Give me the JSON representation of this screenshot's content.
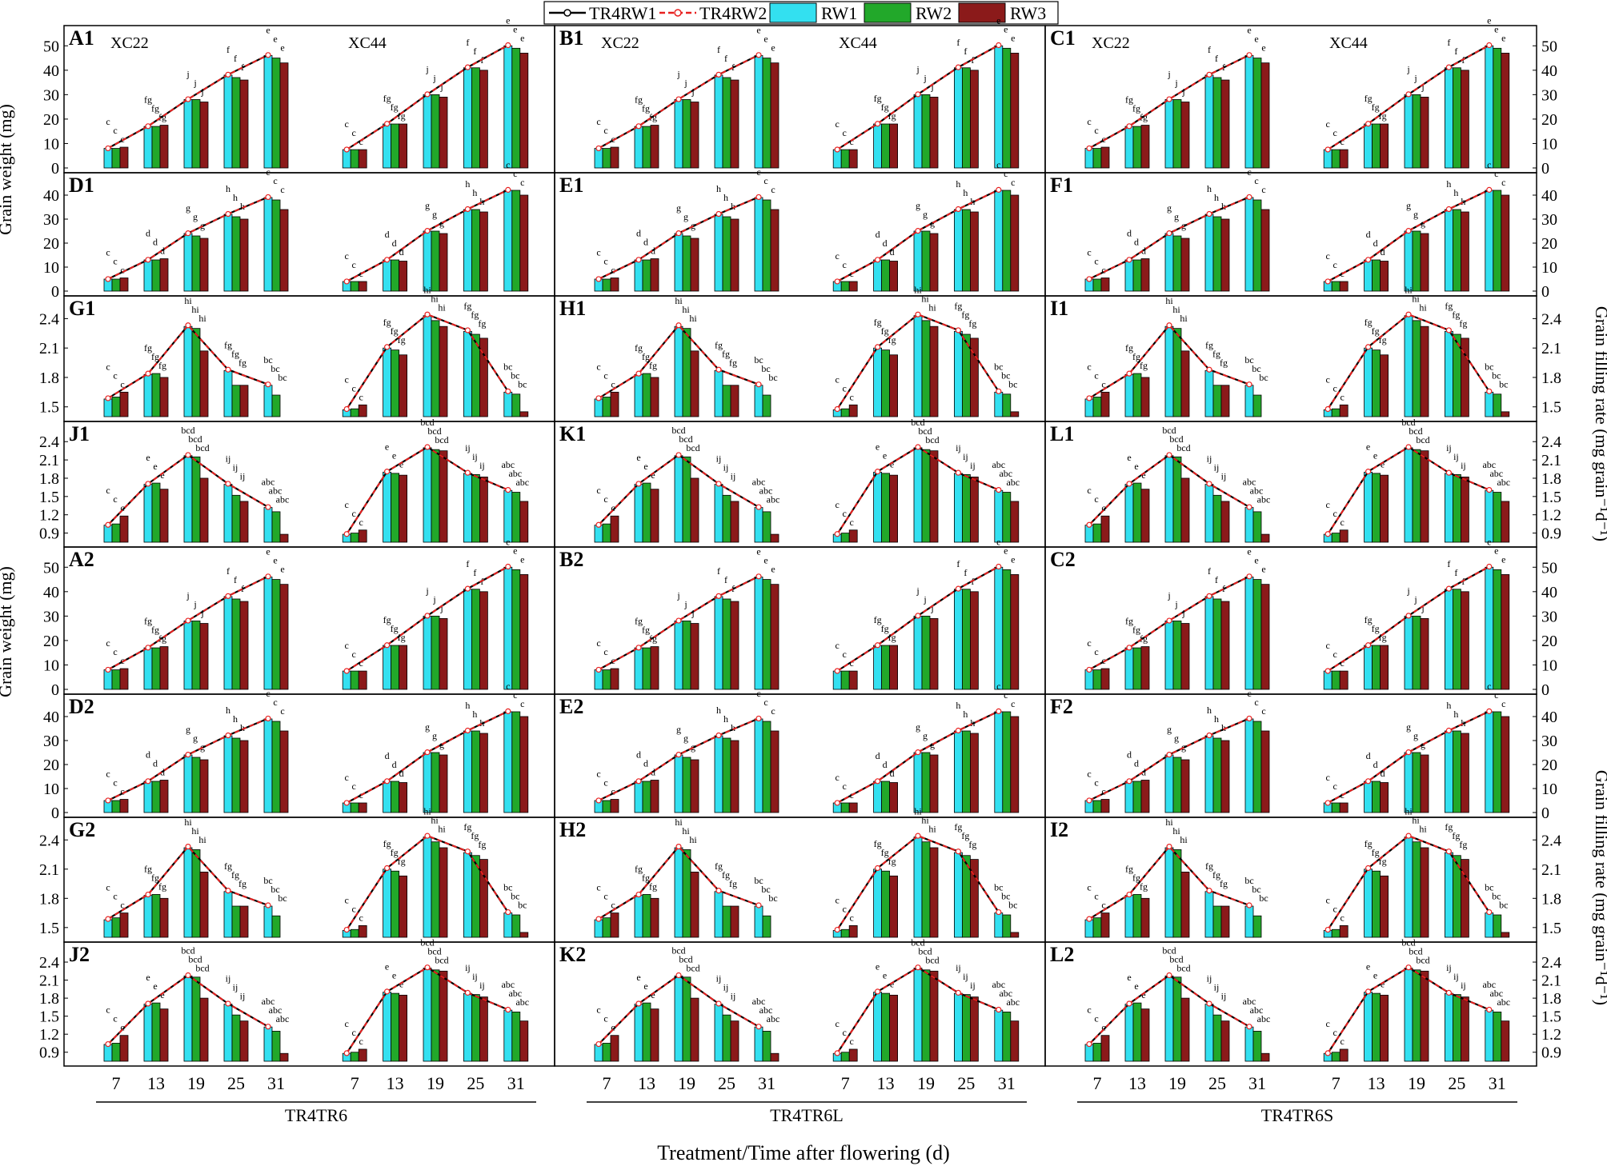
{
  "legend": {
    "entries": [
      {
        "label": "TR4RW1",
        "kind": "line",
        "color": "#000000"
      },
      {
        "label": "TR4RW2",
        "kind": "line-dashed",
        "color": "#e8201f"
      },
      {
        "label": "RW1",
        "kind": "bar",
        "color": "#33e0f0"
      },
      {
        "label": "RW2",
        "kind": "bar",
        "color": "#22a82a"
      },
      {
        "label": "RW3",
        "kind": "bar",
        "color": "#8b1a1a"
      }
    ]
  },
  "axes": {
    "left_label_weight": "Grain weight (mg)",
    "right_label_rate": "Grain filling rate (mg grain⁻¹d⁻¹)",
    "x_title": "Treatment/Time after flowering (d)",
    "x_ticks": [
      "7",
      "13",
      "19",
      "25",
      "31"
    ],
    "groups": [
      "TR4TR6",
      "TR4TR6L",
      "TR4TR6S"
    ],
    "cultivars": [
      "XC22",
      "XC44"
    ],
    "weight_ticks_big": [
      "0",
      "10",
      "20",
      "30",
      "40",
      "50"
    ],
    "weight_ticks_small": [
      "0",
      "10",
      "20",
      "30",
      "40"
    ],
    "rate_ticks_a": [
      "1.5",
      "1.8",
      "2.1",
      "2.4"
    ],
    "rate_ticks_b": [
      "0.9",
      "1.2",
      "1.5",
      "1.8",
      "2.1",
      "2.4"
    ]
  },
  "panel_rows": [
    {
      "row": 0,
      "labels": [
        "A1",
        "B1",
        "C1"
      ],
      "kind": "weight_big"
    },
    {
      "row": 1,
      "labels": [
        "D1",
        "E1",
        "F1"
      ],
      "kind": "weight_small"
    },
    {
      "row": 2,
      "labels": [
        "G1",
        "H1",
        "I1"
      ],
      "kind": "rate_a"
    },
    {
      "row": 3,
      "labels": [
        "J1",
        "K1",
        "L1"
      ],
      "kind": "rate_b"
    },
    {
      "row": 4,
      "labels": [
        "A2",
        "B2",
        "C2"
      ],
      "kind": "weight_big"
    },
    {
      "row": 5,
      "labels": [
        "D2",
        "E2",
        "F2"
      ],
      "kind": "weight_small"
    },
    {
      "row": 6,
      "labels": [
        "G2",
        "H2",
        "I2"
      ],
      "kind": "rate_a"
    },
    {
      "row": 7,
      "labels": [
        "J2",
        "K2",
        "L2"
      ],
      "kind": "rate_b"
    }
  ],
  "chart_data": {
    "type": "bar",
    "note_series": [
      "RW1",
      "RW2",
      "RW3"
    ],
    "x": [
      7,
      13,
      19,
      25,
      31
    ],
    "weight_big": {
      "XC22": {
        "RW1": [
          8,
          17,
          28,
          38,
          46
        ],
        "RW2": [
          8,
          17,
          28,
          37,
          45
        ],
        "RW3": [
          8.5,
          17.5,
          27,
          36,
          43
        ]
      },
      "XC44": {
        "RW1": [
          7.5,
          18,
          30,
          41,
          50
        ],
        "RW2": [
          7.5,
          18,
          30,
          41,
          49
        ],
        "RW3": [
          7.5,
          18,
          29,
          40,
          47
        ]
      },
      "ylim": [
        0,
        55
      ]
    },
    "weight_small": {
      "XC22": {
        "RW1": [
          5,
          13,
          24,
          32,
          39
        ],
        "RW2": [
          5,
          13,
          23,
          31,
          38
        ],
        "RW3": [
          5.5,
          13.5,
          22,
          30,
          34
        ]
      },
      "XC44": {
        "RW1": [
          4,
          13,
          25,
          34,
          42
        ],
        "RW2": [
          4,
          13,
          25,
          34,
          42
        ],
        "RW3": [
          4,
          12.5,
          24,
          33,
          40
        ]
      },
      "ylim": [
        0,
        46
      ]
    },
    "rate_a": {
      "XC22": {
        "RW1": [
          1.58,
          1.83,
          2.32,
          1.87,
          1.72
        ],
        "RW2": [
          1.6,
          1.84,
          2.3,
          1.72,
          1.62
        ],
        "RW3": [
          1.65,
          1.8,
          2.07,
          1.72,
          1.4
        ]
      },
      "XC44": {
        "RW1": [
          1.47,
          2.1,
          2.43,
          2.27,
          1.65
        ],
        "RW2": [
          1.48,
          2.08,
          2.38,
          2.24,
          1.63
        ],
        "RW3": [
          1.52,
          2.03,
          2.32,
          2.2,
          1.45
        ]
      },
      "ylim": [
        1.4,
        2.55
      ]
    },
    "rate_b": {
      "XC22": {
        "RW1": [
          1.03,
          1.7,
          2.17,
          1.7,
          1.32
        ],
        "RW2": [
          1.05,
          1.72,
          2.15,
          1.52,
          1.25
        ],
        "RW3": [
          1.18,
          1.62,
          1.8,
          1.42,
          0.88
        ]
      },
      "XC44": {
        "RW1": [
          0.88,
          1.9,
          2.3,
          1.88,
          1.6
        ],
        "RW2": [
          0.9,
          1.88,
          2.27,
          1.86,
          1.57
        ],
        "RW3": [
          0.95,
          1.85,
          2.25,
          1.82,
          1.42
        ]
      },
      "ylim": [
        0.75,
        2.6
      ]
    }
  },
  "letter_samples": {
    "weight_big": [
      "c",
      "fg",
      "j",
      "f",
      "e"
    ],
    "weight_small": [
      "c",
      "d",
      "g",
      "h",
      "c"
    ],
    "rate_a": [
      "c",
      "fg",
      "hi",
      "fg",
      "bc"
    ],
    "rate_b": [
      "c",
      "e",
      "bcd",
      "ij",
      "abc"
    ]
  }
}
